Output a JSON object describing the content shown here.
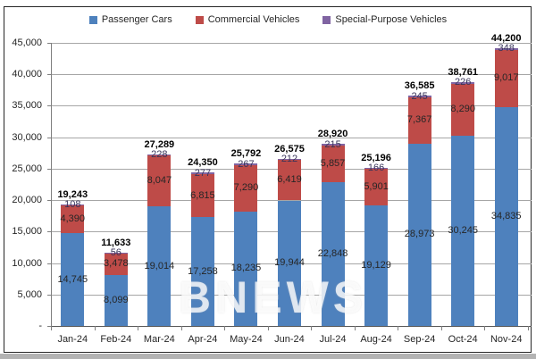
{
  "watermark": "BNEWS",
  "colors": {
    "passenger": "#4E81BD",
    "commercial": "#BE4B48",
    "special": "#8064A2",
    "gridline": "#a6a6a6",
    "axis": "#7f7f7f",
    "text": "#262626"
  },
  "chart_data": {
    "type": "bar",
    "stacked": true,
    "title": "",
    "xlabel": "",
    "ylabel": "",
    "legend_position": "top",
    "grid": true,
    "categories": [
      "Jan-24",
      "Feb-24",
      "Mar-24",
      "Apr-24",
      "May-24",
      "Jun-24",
      "Jul-24",
      "Aug-24",
      "Sep-24",
      "Oct-24",
      "Nov-24"
    ],
    "series": [
      {
        "name": "Passenger Cars",
        "color": "#4E81BD",
        "values": [
          14745,
          8099,
          19014,
          17258,
          18235,
          19944,
          22848,
          19129,
          28973,
          30245,
          34835
        ]
      },
      {
        "name": "Commercial Vehicles",
        "color": "#BE4B48",
        "values": [
          4390,
          3478,
          8047,
          6815,
          7290,
          6419,
          5857,
          5901,
          7367,
          8290,
          9017
        ]
      },
      {
        "name": "Special-Purpose Vehicles",
        "color": "#8064A2",
        "values": [
          108,
          56,
          228,
          277,
          267,
          212,
          215,
          166,
          245,
          226,
          348
        ]
      }
    ],
    "totals": [
      19243,
      11633,
      27289,
      24350,
      25792,
      26575,
      28920,
      25196,
      36585,
      38761,
      44200
    ],
    "y_axis": {
      "min": 0,
      "max": 45000,
      "step": 5000,
      "zero_label": "-",
      "tick_labels": [
        "-",
        "5,000",
        "10,000",
        "15,000",
        "20,000",
        "25,000",
        "30,000",
        "35,000",
        "40,000",
        "45,000"
      ]
    }
  }
}
